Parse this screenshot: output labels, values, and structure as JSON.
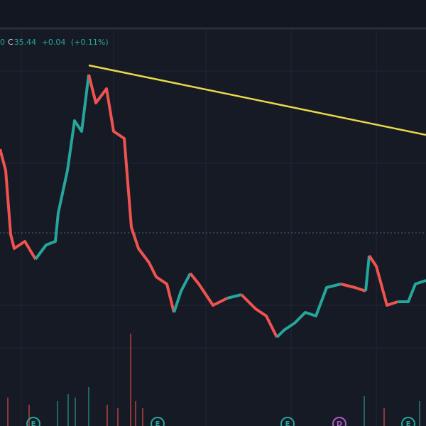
{
  "legend": {
    "partial": "0",
    "close_label": "C",
    "close": "35.44",
    "change": "+0.04",
    "change_pct": "(+0.11%)"
  },
  "event_markers": [
    "E",
    "E",
    "E",
    "D",
    "E"
  ]
}
